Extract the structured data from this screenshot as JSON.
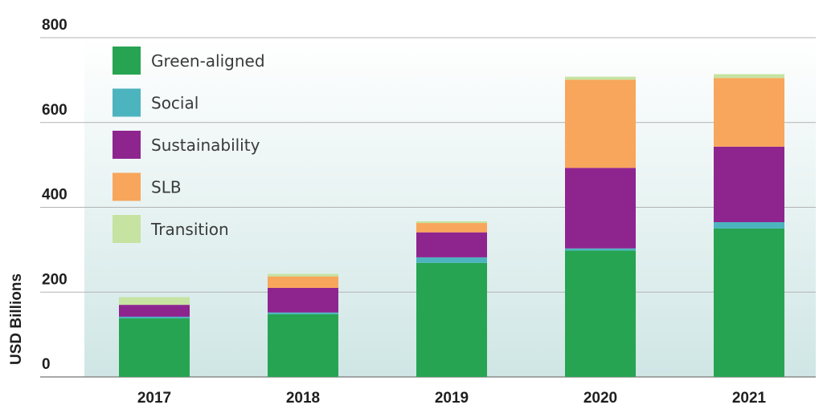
{
  "chart_data": {
    "type": "bar",
    "stacked": true,
    "title": "",
    "xlabel": "",
    "ylabel": "USD Billions",
    "ylim": [
      0,
      800
    ],
    "yticks": [
      0,
      200,
      400,
      600,
      800
    ],
    "grid": true,
    "legend_position": "top-left",
    "categories": [
      "2017",
      "2018",
      "2019",
      "2020",
      "2021"
    ],
    "series": [
      {
        "name": "Green-aligned",
        "color": "#27a452",
        "values": [
          138,
          148,
          269,
          298,
          350
        ]
      },
      {
        "name": "Social",
        "color": "#4cb4bf",
        "values": [
          4,
          4,
          13,
          5,
          15
        ]
      },
      {
        "name": "Sustainability",
        "color": "#8e258f",
        "values": [
          28,
          58,
          59,
          190,
          178
        ]
      },
      {
        "name": "SLB",
        "color": "#f8a65b",
        "values": [
          0,
          27,
          22,
          208,
          162
        ]
      },
      {
        "name": "Transition",
        "color": "#c6e3a1",
        "values": [
          18,
          6,
          4,
          7,
          9
        ]
      }
    ]
  }
}
